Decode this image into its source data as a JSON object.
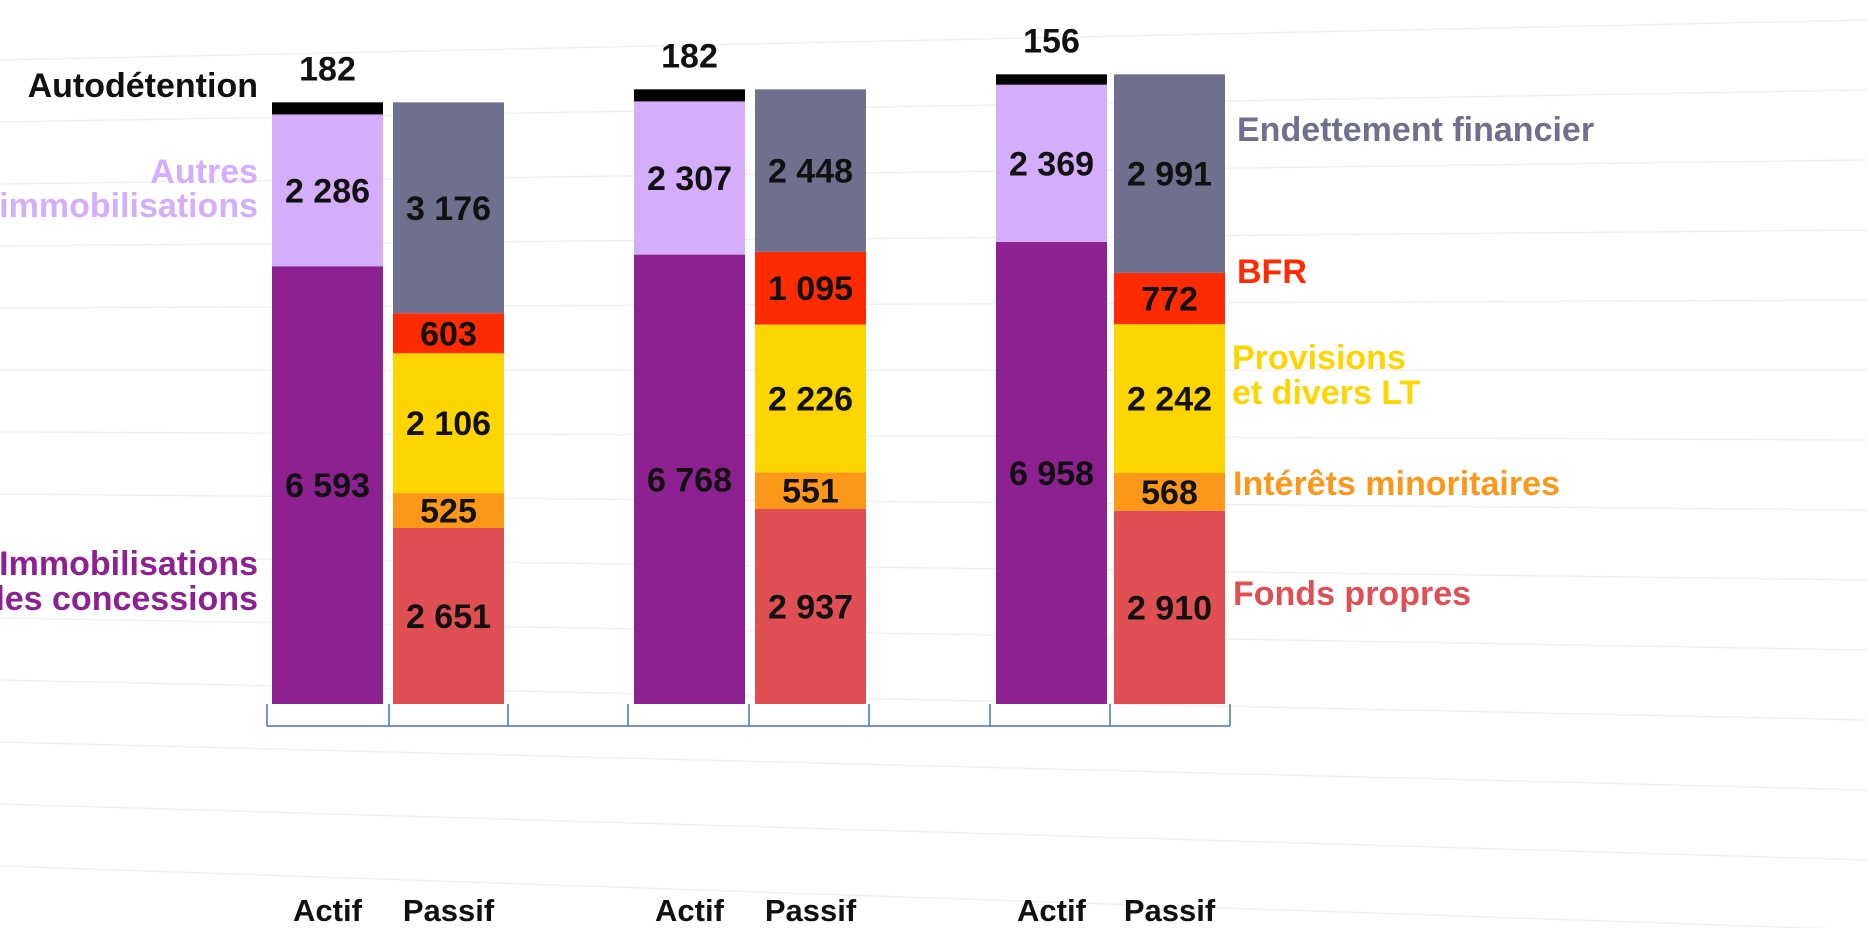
{
  "chart_data": {
    "type": "bar",
    "stacked": true,
    "groups": [
      {
        "bars": [
          {
            "label": "Actif",
            "segments": [
              6593,
              2286,
              182
            ]
          },
          {
            "label": "Passif",
            "segments": [
              2651,
              525,
              2106,
              603,
              3176
            ]
          }
        ]
      },
      {
        "bars": [
          {
            "label": "Actif",
            "segments": [
              6768,
              2307,
              182
            ]
          },
          {
            "label": "Passif",
            "segments": [
              2937,
              551,
              2226,
              1095,
              2448
            ]
          }
        ]
      },
      {
        "bars": [
          {
            "label": "Actif",
            "segments": [
              6958,
              2369,
              156
            ]
          },
          {
            "label": "Passif",
            "segments": [
              2910,
              568,
              2242,
              772,
              2991
            ]
          }
        ]
      }
    ],
    "value_labels": [
      {
        "bars": [
          {
            "segments": [
              "6 593",
              "2 286",
              "182"
            ]
          },
          {
            "segments": [
              "2 651",
              "525",
              "2 106",
              "603",
              "3 176"
            ]
          }
        ]
      },
      {
        "bars": [
          {
            "segments": [
              "6 768",
              "2 307",
              "182"
            ]
          },
          {
            "segments": [
              "2 937",
              "551",
              "2 226",
              "1 095",
              "2 448"
            ]
          }
        ]
      },
      {
        "bars": [
          {
            "segments": [
              "6 958",
              "2 369",
              "156"
            ]
          },
          {
            "segments": [
              "2 910",
              "568",
              "2 242",
              "772",
              "2 991"
            ]
          }
        ]
      }
    ],
    "actif_series": [
      {
        "name": [
          "Immobilisations",
          "des concessions"
        ],
        "color": "#8e2191"
      },
      {
        "name": [
          "Autres",
          "immobilisations"
        ],
        "color": "#d4adfb"
      },
      {
        "name": [
          "Autodétention"
        ],
        "color": "#000000"
      }
    ],
    "passif_series": [
      {
        "name": [
          "Fonds propres"
        ],
        "color": "#e04f54"
      },
      {
        "name": [
          "Intérêts minoritaires"
        ],
        "color": "#fb9719"
      },
      {
        "name": [
          "Provisions",
          "et divers LT"
        ],
        "color": "#fdd500"
      },
      {
        "name": [
          "BFR"
        ],
        "color": "#fd2a02"
      },
      {
        "name": [
          "Endettement financier"
        ],
        "color": "#6f6f8e"
      }
    ],
    "legend_colors": {
      "actif": [
        "#8e2191",
        "#d4adfb",
        "#000000"
      ],
      "passif": [
        "#e04f54",
        "#fb9719",
        "#fdd500",
        "#fd2a02",
        "#6f6f8e"
      ]
    },
    "grid": false,
    "legend_placement": "left for Actif series, right for Passif series"
  }
}
